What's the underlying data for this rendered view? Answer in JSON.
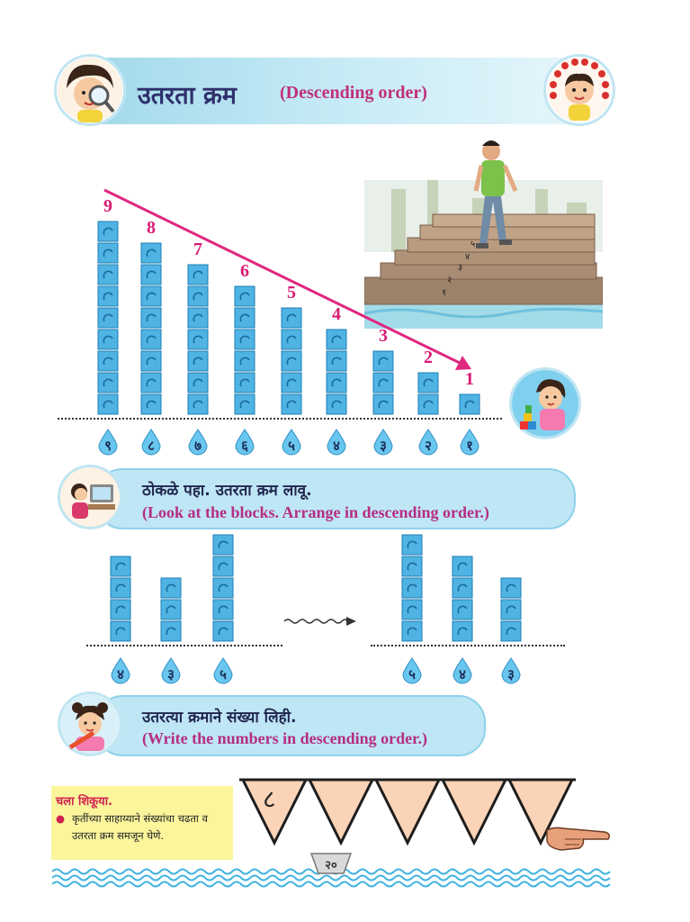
{
  "header": {
    "title_marathi": "उतरता क्रम",
    "title_english": "(Descending order)"
  },
  "towers": {
    "labels": [
      "9",
      "8",
      "7",
      "6",
      "5",
      "4",
      "3",
      "2",
      "1"
    ],
    "drops": [
      "९",
      "८",
      "७",
      "६",
      "५",
      "४",
      "३",
      "२",
      "१"
    ],
    "heights": [
      9,
      8,
      7,
      6,
      5,
      4,
      3,
      2,
      1
    ]
  },
  "illustration": {
    "step_numbers": [
      "१",
      "२",
      "३",
      "४",
      "५"
    ]
  },
  "activity1": {
    "instruction_marathi": "ठोकळे पहा. उतरता क्रम लावू.",
    "instruction_english": "(Look at the blocks. Arrange in descending order.)",
    "left_heights": [
      4,
      3,
      5
    ],
    "left_drops": [
      "४",
      "३",
      "५"
    ],
    "right_heights": [
      5,
      4,
      3
    ],
    "right_drops": [
      "५",
      "४",
      "३"
    ]
  },
  "activity2": {
    "instruction_marathi": "उतरत्या क्रमाने संख्या लिही.",
    "instruction_english": "(Write the numbers in descending order.)",
    "first_value": "८"
  },
  "note": {
    "title": "चला शिकूया.",
    "bullet": "कृतींच्या साहाय्याने संख्यांचा चढता व उतरता क्रम समजून घेणे."
  },
  "footer": {
    "page_number": "२०"
  },
  "colors": {
    "block": "#4fb3e3",
    "accent": "#e0287f",
    "pill": "#bfe6f5"
  }
}
